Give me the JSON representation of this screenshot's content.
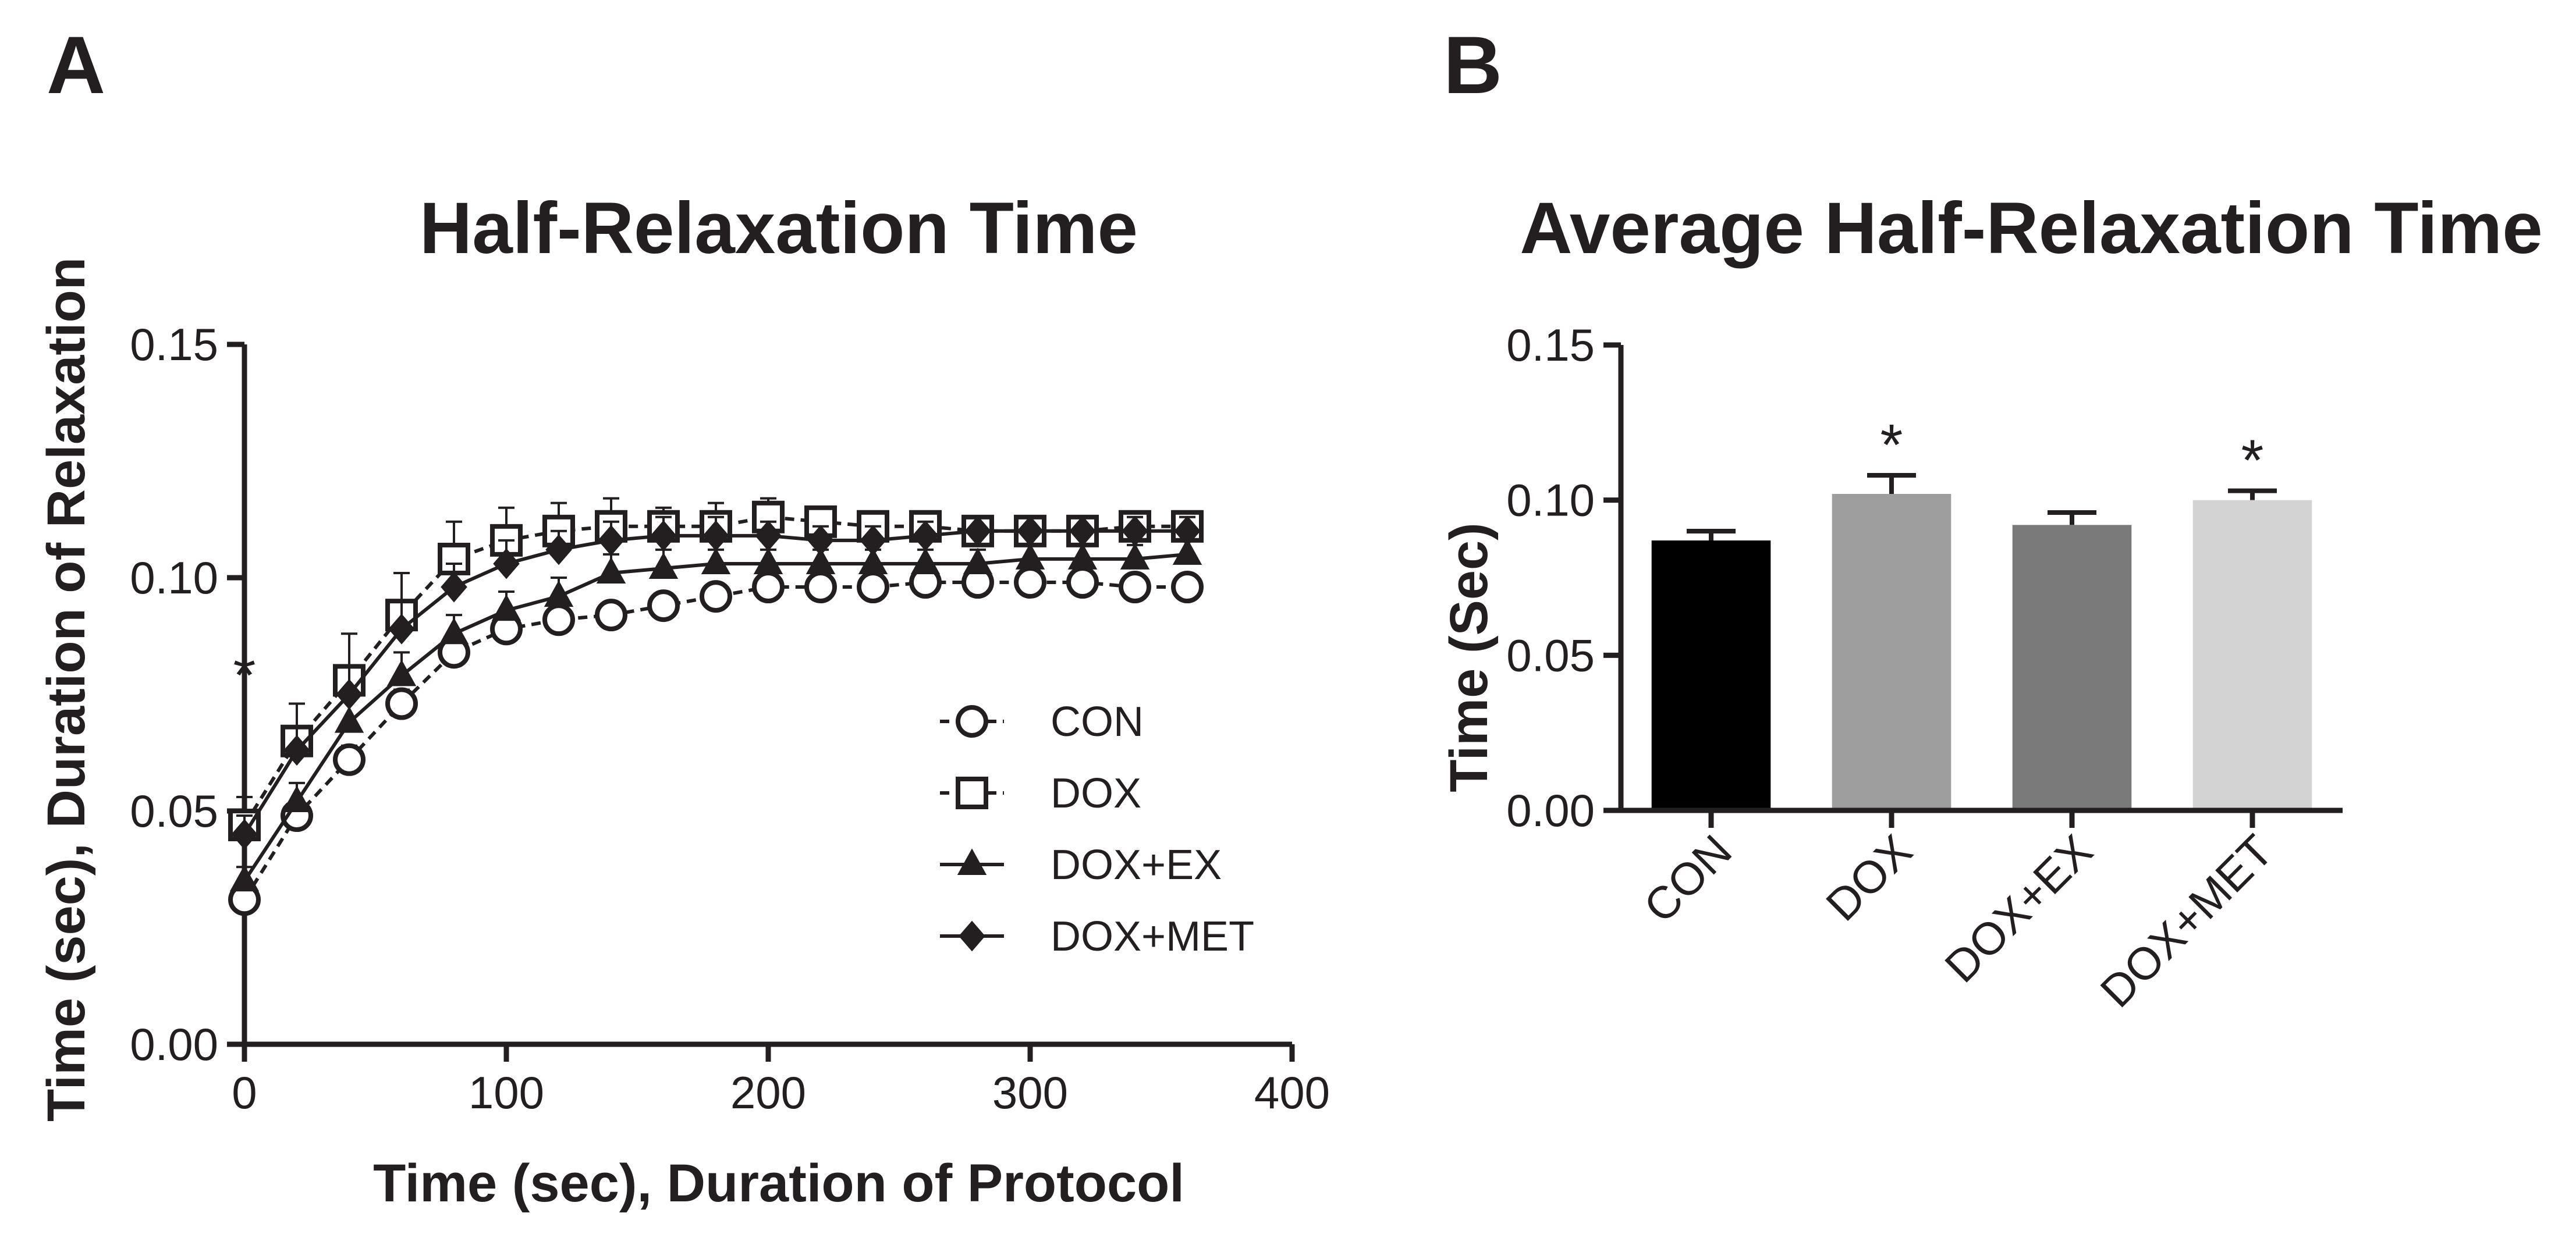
{
  "panel_labels": {
    "a": "A",
    "b": "B"
  },
  "chart_data": [
    {
      "type": "line",
      "panel": "A",
      "title": "Half-Relaxation Time",
      "xlabel": "Time (sec), Duration of Protocol",
      "ylabel": "Time (sec), Duration of Relaxation",
      "xlim": [
        0,
        400
      ],
      "ylim": [
        0,
        0.15
      ],
      "xticks": [
        "0",
        "100",
        "200",
        "300",
        "400"
      ],
      "yticks": [
        "0.00",
        "0.05",
        "0.10",
        "0.15"
      ],
      "grid": false,
      "legend_position": "center-right",
      "annotation": "*",
      "x": [
        0,
        20,
        40,
        60,
        80,
        100,
        120,
        140,
        160,
        180,
        200,
        220,
        240,
        260,
        280,
        300,
        320,
        340,
        360
      ],
      "series": [
        {
          "name": "CON",
          "marker": "circle-open",
          "line": "dashed",
          "values": [
            0.031,
            0.049,
            0.061,
            0.073,
            0.084,
            0.089,
            0.091,
            0.092,
            0.094,
            0.096,
            0.098,
            0.098,
            0.098,
            0.099,
            0.099,
            0.099,
            0.099,
            0.098,
            0.098
          ],
          "errors": [
            0.002,
            0.003,
            0.003,
            0.003,
            0.003,
            0.003,
            0.002,
            0.002,
            0.002,
            0.002,
            0.002,
            0.002,
            0.002,
            0.002,
            0.002,
            0.002,
            0.002,
            0.002,
            0.002
          ]
        },
        {
          "name": "DOX",
          "marker": "square-open",
          "line": "dashed",
          "values": [
            0.047,
            0.065,
            0.078,
            0.092,
            0.104,
            0.108,
            0.11,
            0.111,
            0.111,
            0.111,
            0.113,
            0.112,
            0.111,
            0.111,
            0.11,
            0.11,
            0.11,
            0.111,
            0.111
          ],
          "errors": [
            0.006,
            0.008,
            0.01,
            0.009,
            0.008,
            0.007,
            0.006,
            0.006,
            0.004,
            0.005,
            0.004,
            0.003,
            0.003,
            0.003,
            0.003,
            0.003,
            0.003,
            0.003,
            0.003
          ]
        },
        {
          "name": "DOX+EX",
          "marker": "triangle-filled",
          "line": "solid",
          "values": [
            0.035,
            0.052,
            0.069,
            0.079,
            0.088,
            0.093,
            0.096,
            0.101,
            0.102,
            0.103,
            0.103,
            0.103,
            0.103,
            0.103,
            0.103,
            0.104,
            0.104,
            0.104,
            0.105
          ],
          "errors": [
            0.003,
            0.004,
            0.005,
            0.005,
            0.004,
            0.004,
            0.004,
            0.004,
            0.004,
            0.003,
            0.003,
            0.003,
            0.003,
            0.003,
            0.003,
            0.003,
            0.003,
            0.003,
            0.003
          ]
        },
        {
          "name": "DOX+MET",
          "marker": "diamond-filled",
          "line": "solid",
          "values": [
            0.045,
            0.063,
            0.075,
            0.089,
            0.098,
            0.103,
            0.106,
            0.108,
            0.109,
            0.109,
            0.109,
            0.108,
            0.108,
            0.109,
            0.11,
            0.11,
            0.11,
            0.11,
            0.11
          ],
          "errors": [
            0.004,
            0.005,
            0.006,
            0.006,
            0.005,
            0.005,
            0.004,
            0.004,
            0.004,
            0.004,
            0.003,
            0.003,
            0.003,
            0.003,
            0.003,
            0.003,
            0.003,
            0.003,
            0.003
          ]
        }
      ]
    },
    {
      "type": "bar",
      "panel": "B",
      "title": "Average Half-Relaxation Time",
      "xlabel": "",
      "ylabel": "Time (Sec)",
      "ylim": [
        0,
        0.15
      ],
      "yticks": [
        "0.00",
        "0.05",
        "0.10",
        "0.15"
      ],
      "grid": false,
      "categories": [
        "CON",
        "DOX",
        "DOX+EX",
        "DOX+MET"
      ],
      "values": [
        0.087,
        0.102,
        0.092,
        0.1
      ],
      "errors": [
        0.003,
        0.006,
        0.004,
        0.003
      ],
      "colors": [
        "#000000",
        "#9e9e9e",
        "#7a7a7a",
        "#d3d3d3"
      ],
      "significance": [
        "",
        "*",
        "",
        "*"
      ]
    }
  ]
}
